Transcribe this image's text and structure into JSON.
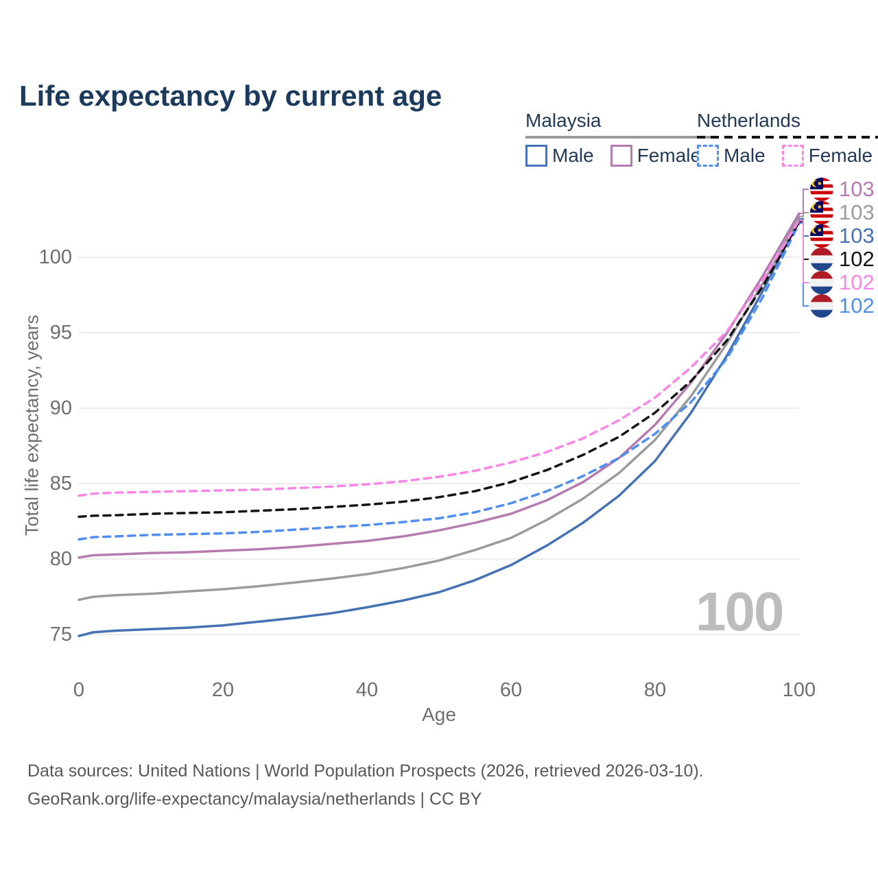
{
  "title": "Life expectancy by current age",
  "legend": {
    "groups": [
      {
        "label": "Malaysia",
        "underline_color": "#9b9b9b",
        "underline_dashed": false,
        "items": [
          {
            "label": "Male",
            "color": "#4472b4",
            "dashed": false
          },
          {
            "label": "Female",
            "color": "#b57bb0",
            "dashed": false
          }
        ]
      },
      {
        "label": "Netherlands",
        "underline_color": "#141414",
        "underline_dashed": true,
        "items": [
          {
            "label": "Male",
            "color": "#4e8df2",
            "dashed": true
          },
          {
            "label": "Female",
            "color": "#fb85e7",
            "dashed": true
          }
        ]
      }
    ]
  },
  "chart_data": {
    "type": "line",
    "title": "Life expectancy by current age",
    "xlabel": "Age",
    "ylabel": "Total life expectancy, years",
    "watermark": "100",
    "xlim": [
      0,
      100
    ],
    "ylim": [
      73.5,
      103.5
    ],
    "xticks": [
      0,
      20,
      40,
      60,
      80,
      100
    ],
    "yticks": [
      75,
      80,
      85,
      90,
      95,
      100
    ],
    "grid": "horizontal-only",
    "legend_position": "top-right",
    "x": [
      0,
      2,
      5,
      10,
      15,
      20,
      25,
      30,
      35,
      40,
      45,
      50,
      55,
      60,
      65,
      70,
      75,
      80,
      85,
      90,
      95,
      100
    ],
    "series": [
      {
        "name": "Malaysia Male",
        "country": "Malaysia",
        "sex": "male",
        "color": "#4472b4",
        "dashed": false,
        "end_label": "103",
        "label_row": 2,
        "values": [
          74.9,
          75.15,
          75.25,
          75.35,
          75.45,
          75.6,
          75.85,
          76.1,
          76.4,
          76.8,
          77.25,
          77.8,
          78.6,
          79.6,
          80.9,
          82.4,
          84.2,
          86.5,
          89.7,
          93.5,
          97.8,
          102.55
        ]
      },
      {
        "name": "Malaysia",
        "country": "Malaysia",
        "sex": "total",
        "color": "#9b9b9b",
        "dashed": false,
        "end_label": "103",
        "label_row": 1,
        "values": [
          77.3,
          77.5,
          77.6,
          77.7,
          77.85,
          78.0,
          78.2,
          78.45,
          78.7,
          79.0,
          79.4,
          79.9,
          80.6,
          81.4,
          82.6,
          84.0,
          85.7,
          87.9,
          90.8,
          94.3,
          98.3,
          102.7
        ]
      },
      {
        "name": "Malaysia Female",
        "country": "Malaysia",
        "sex": "female",
        "color": "#b57bb0",
        "dashed": false,
        "end_label": "103",
        "label_row": 0,
        "values": [
          80.1,
          80.25,
          80.3,
          80.4,
          80.45,
          80.55,
          80.65,
          80.8,
          81.0,
          81.2,
          81.5,
          81.9,
          82.4,
          83.0,
          83.9,
          85.1,
          86.7,
          88.9,
          91.7,
          95.0,
          98.8,
          102.9
        ]
      },
      {
        "name": "Netherlands Male",
        "country": "Netherlands",
        "sex": "male",
        "color": "#4e8df2",
        "dashed": true,
        "end_label": "102",
        "label_row": 5,
        "values": [
          81.3,
          81.45,
          81.5,
          81.6,
          81.65,
          81.7,
          81.8,
          81.95,
          82.1,
          82.25,
          82.45,
          82.7,
          83.1,
          83.7,
          84.5,
          85.5,
          86.7,
          88.3,
          90.4,
          93.3,
          97.4,
          102.25
        ]
      },
      {
        "name": "Netherlands",
        "country": "Netherlands",
        "sex": "total",
        "color": "#141414",
        "dashed": true,
        "end_label": "102",
        "label_row": 3,
        "values": [
          82.8,
          82.87,
          82.9,
          83.0,
          83.05,
          83.1,
          83.2,
          83.3,
          83.45,
          83.6,
          83.8,
          84.1,
          84.5,
          85.1,
          85.9,
          86.9,
          88.1,
          89.7,
          91.8,
          94.5,
          98.1,
          102.35
        ]
      },
      {
        "name": "Netherlands Female",
        "country": "Netherlands",
        "sex": "female",
        "color": "#fb85e7",
        "dashed": true,
        "end_label": "102",
        "label_row": 4,
        "values": [
          84.2,
          84.33,
          84.4,
          84.45,
          84.5,
          84.55,
          84.6,
          84.7,
          84.8,
          84.95,
          85.15,
          85.45,
          85.85,
          86.4,
          87.1,
          88.0,
          89.2,
          90.7,
          92.7,
          95.1,
          98.5,
          102.45
        ]
      }
    ],
    "end_labels": [
      {
        "flag": "malaysia",
        "value": "103",
        "color": "#b57bb0"
      },
      {
        "flag": "malaysia",
        "value": "103",
        "color": "#9b9b9b"
      },
      {
        "flag": "malaysia",
        "value": "103",
        "color": "#4472b4"
      },
      {
        "flag": "netherlands",
        "value": "102",
        "color": "#141414"
      },
      {
        "flag": "netherlands",
        "value": "102",
        "color": "#fb85e7"
      },
      {
        "flag": "netherlands",
        "value": "102",
        "color": "#4e8df2"
      }
    ]
  },
  "footer": {
    "line1": "Data sources: United Nations | World Population Prospects (2026, retrieved 2026-03-10).",
    "line2": "GeoRank.org/life-expectancy/malaysia/netherlands | CC BY"
  },
  "colors": {
    "title_text": "#1c3a5c",
    "legend_text": "#223a57",
    "axis_text": "#6e6e6e",
    "gridline": "#ececec",
    "watermark": "#bcbcbc",
    "footer_text": "#575757"
  }
}
